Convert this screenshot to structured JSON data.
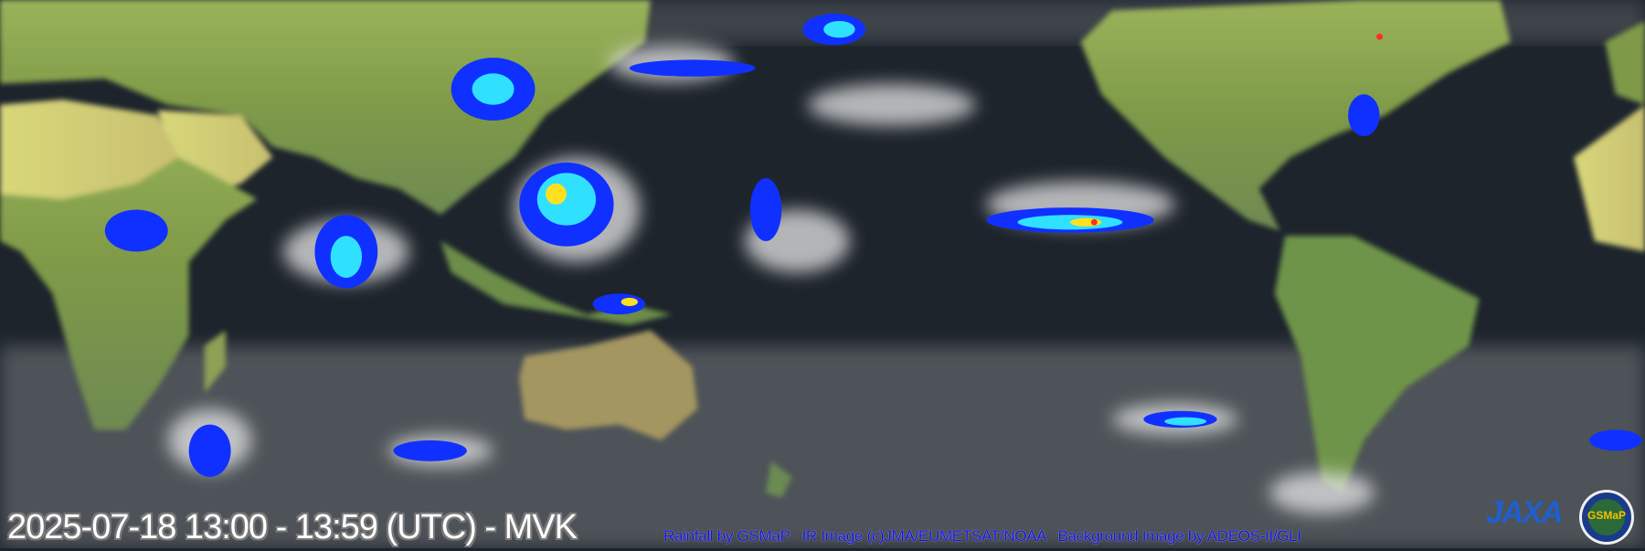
{
  "overlay": {
    "timestamp": "2025-07-18 13:00 - 13:59 (UTC) - MVK",
    "credits": "Rainfall by GSMaP   IR Image (c)JMA/EUMETSAT/NOAA   Background Image by ADEOS-II/GLI"
  },
  "logos": {
    "jaxa": "JAXA",
    "gsmap": "GSMaP"
  },
  "colors": {
    "ocean": "#1d242c",
    "land": "#8fa850",
    "cloud": "#e8e8e8",
    "credits_text": "#1010e0",
    "rain_light": "#1030ff",
    "rain_mid": "#30e0ff",
    "rain_heavy": "#ffe020"
  }
}
